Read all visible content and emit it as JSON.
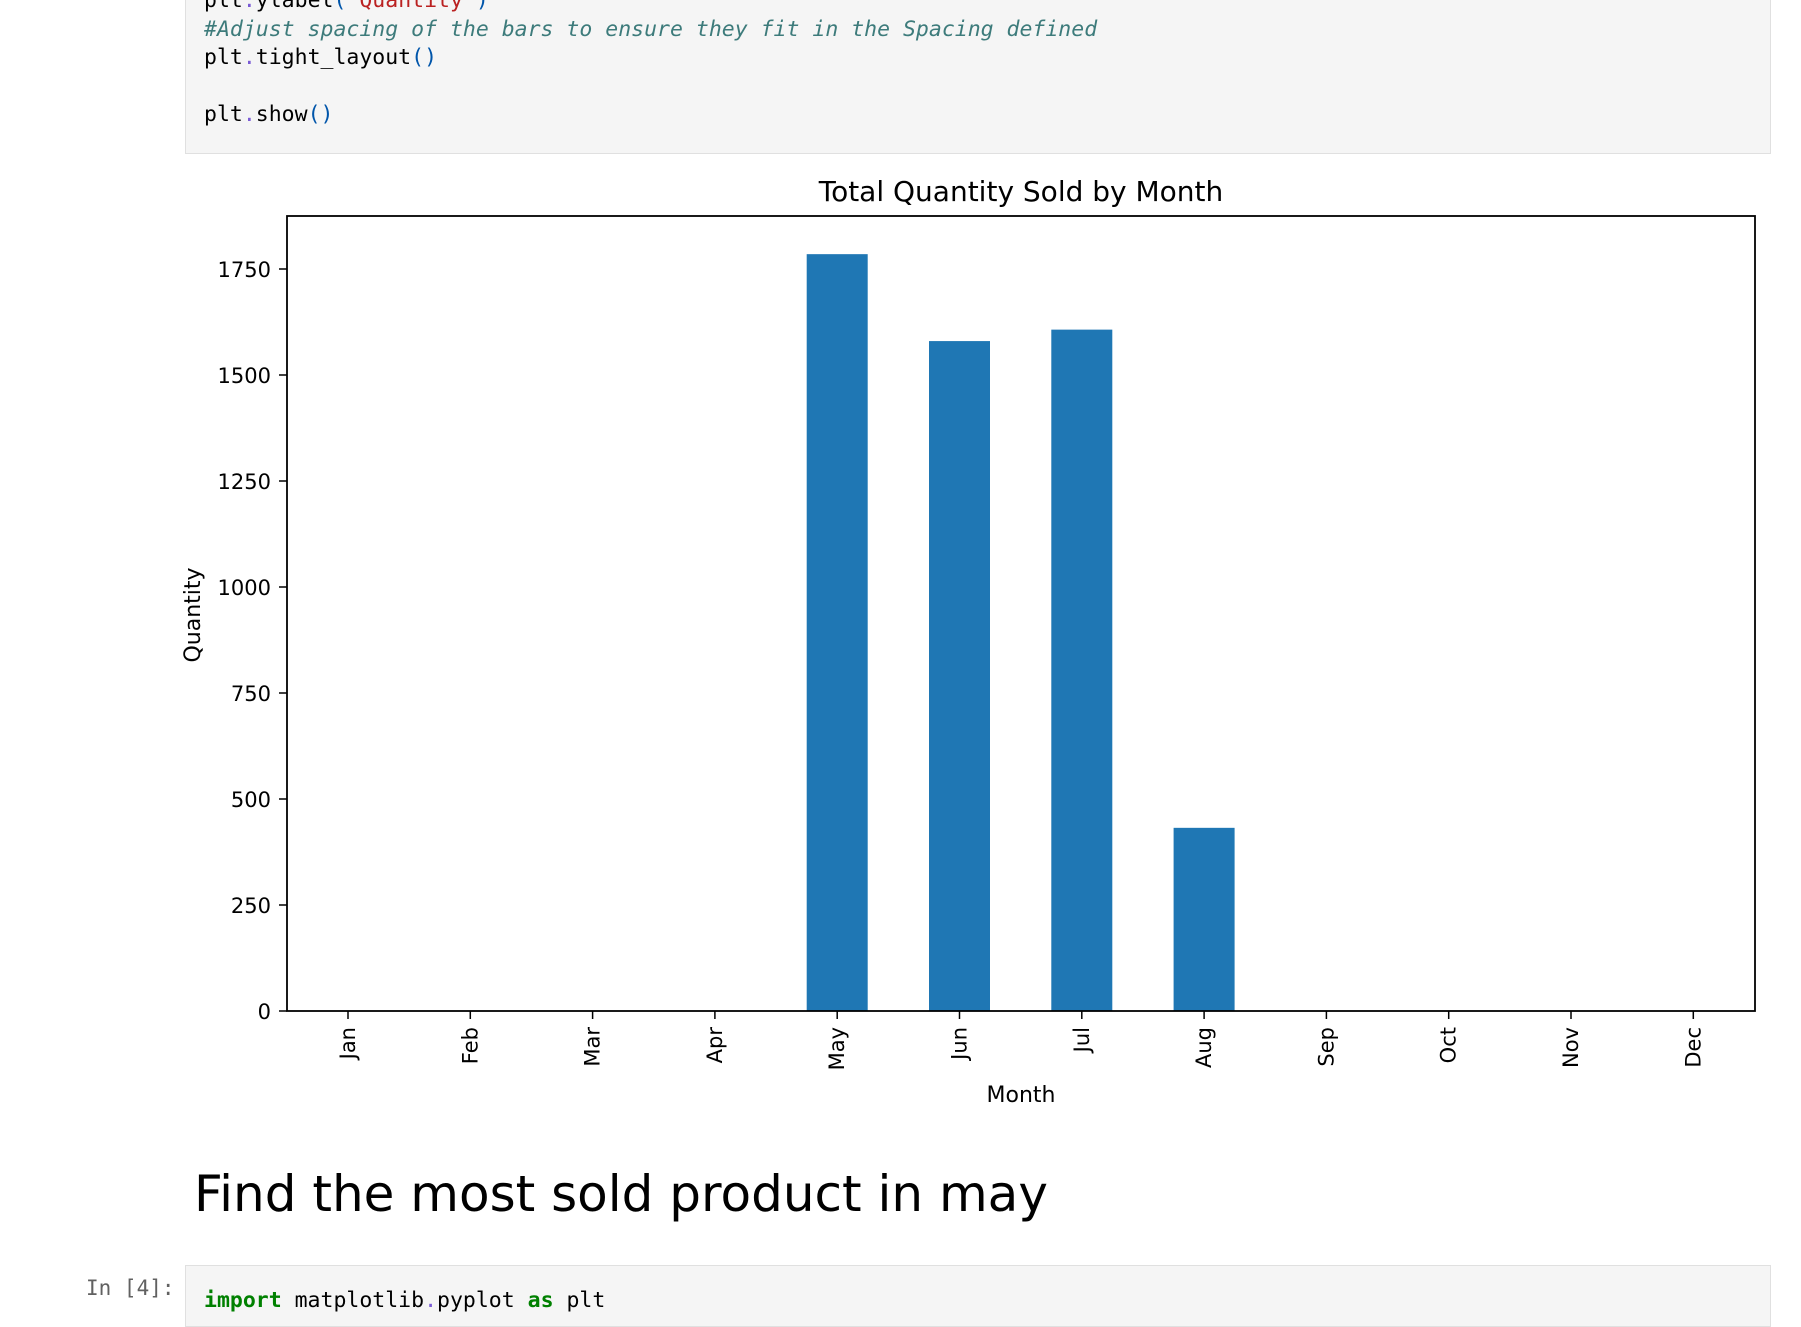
{
  "top_cell": {
    "lines": [
      {
        "parts": [
          {
            "t": "plt",
            "c": ""
          },
          {
            "t": ".",
            "c": "op"
          },
          {
            "t": "ylabel",
            "c": ""
          },
          {
            "t": "(",
            "c": "pn"
          },
          {
            "t": "'Quantity'",
            "c": "st"
          },
          {
            "t": ")",
            "c": "pn"
          }
        ]
      },
      {
        "parts": [
          {
            "t": "#Adjust spacing of the bars to ensure they fit in the Spacing defined",
            "c": "cm"
          }
        ]
      },
      {
        "parts": [
          {
            "t": "plt",
            "c": ""
          },
          {
            "t": ".",
            "c": "op"
          },
          {
            "t": "tight_layout",
            "c": ""
          },
          {
            "t": "()",
            "c": "pn"
          }
        ]
      },
      {
        "parts": []
      },
      {
        "parts": [
          {
            "t": "plt",
            "c": ""
          },
          {
            "t": ".",
            "c": "op"
          },
          {
            "t": "show",
            "c": ""
          },
          {
            "t": "()",
            "c": "pn"
          }
        ]
      }
    ]
  },
  "chart_data": {
    "type": "bar",
    "title": "Total Quantity Sold by Month",
    "xlabel": "Month",
    "ylabel": "Quantity",
    "categories": [
      "Jan",
      "Feb",
      "Mar",
      "Apr",
      "May",
      "Jun",
      "Jul",
      "Aug",
      "Sep",
      "Oct",
      "Nov",
      "Dec"
    ],
    "values": [
      0,
      0,
      0,
      0,
      1785,
      1580,
      1607,
      432,
      0,
      0,
      0,
      0
    ],
    "ylim": [
      0,
      1875
    ],
    "yticks": [
      0,
      250,
      500,
      750,
      1000,
      1250,
      1500,
      1750
    ],
    "bar_color": "#1f77b4",
    "grid": false,
    "legend": false
  },
  "markdown": {
    "heading": "Find the most sold product in may"
  },
  "bottom_cell": {
    "prompt": "In [4]:",
    "lines": [
      {
        "parts": [
          {
            "t": "import",
            "c": "kw"
          },
          {
            "t": " matplotlib",
            "c": ""
          },
          {
            "t": ".",
            "c": "op"
          },
          {
            "t": "pyplot ",
            "c": ""
          },
          {
            "t": "as",
            "c": "kw"
          },
          {
            "t": " plt",
            "c": ""
          }
        ]
      }
    ]
  }
}
